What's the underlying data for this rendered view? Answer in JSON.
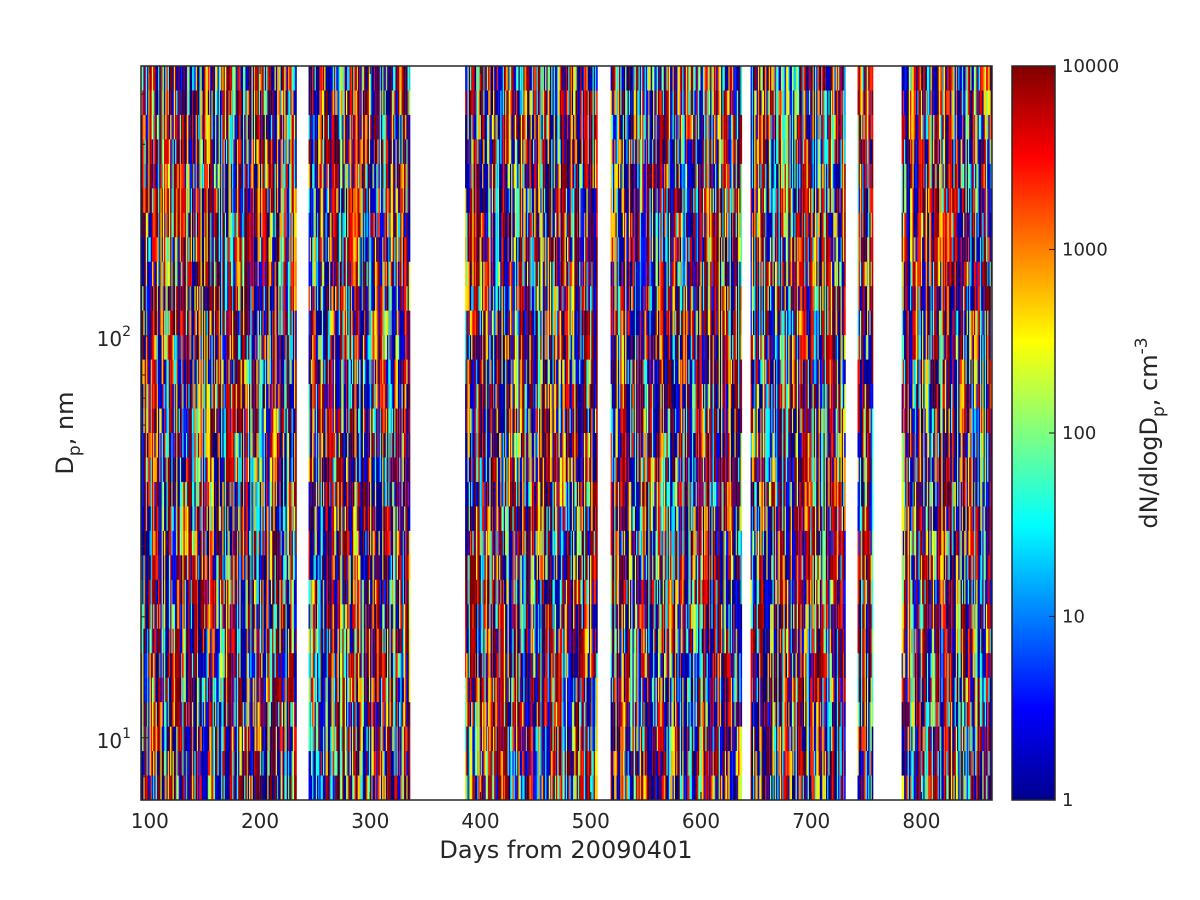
{
  "chart_data": {
    "type": "heatmap",
    "title": "",
    "xlabel": "Days from 20090401",
    "ylabel": {
      "main": "D",
      "sub": "p",
      "rest": ", nm"
    },
    "colorbar_label": {
      "main": "dN/dlogD",
      "sub": "p",
      "rest": ", cm",
      "sup": "-3"
    },
    "x": {
      "range": [
        92,
        864
      ],
      "ticks": [
        100,
        200,
        300,
        400,
        500,
        600,
        700,
        800
      ]
    },
    "y": {
      "scale": "log",
      "range": [
        7,
        470
      ],
      "ticks": [
        {
          "value": 10,
          "base": "10",
          "exp": "1"
        },
        {
          "value": 100,
          "base": "10",
          "exp": "2"
        }
      ]
    },
    "color_scale": {
      "scale": "log",
      "range": [
        1,
        10000
      ],
      "ticks": [
        {
          "value": 1,
          "label": "1"
        },
        {
          "value": 10,
          "label": "10"
        },
        {
          "value": 100,
          "label": "100"
        },
        {
          "value": 1000,
          "label": "1000"
        },
        {
          "value": 10000,
          "label": "10000"
        }
      ],
      "colormap": "jet"
    },
    "data_segments": [
      {
        "from": 92,
        "to": 233
      },
      {
        "from": 244,
        "to": 336
      },
      {
        "from": 386,
        "to": 506
      },
      {
        "from": 518,
        "to": 637
      },
      {
        "from": 645,
        "to": 731
      },
      {
        "from": 742,
        "to": 756
      },
      {
        "from": 782,
        "to": 864
      }
    ],
    "grid": false
  }
}
